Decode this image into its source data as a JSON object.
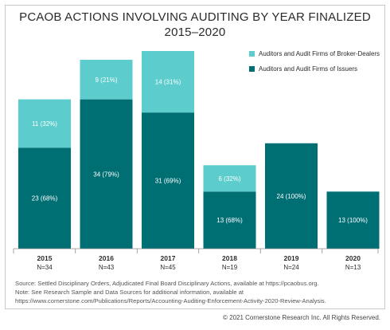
{
  "chart_data": {
    "type": "bar",
    "title": "PCAOB ACTIONS INVOLVING AUDITING BY YEAR FINALIZED",
    "subtitle": "2015–2020",
    "categories": [
      "2015",
      "2016",
      "2017",
      "2018",
      "2019",
      "2020"
    ],
    "n_labels": [
      "N=34",
      "N=43",
      "N=45",
      "N=19",
      "N=24",
      "N=13"
    ],
    "series": [
      {
        "name": "Auditors and Audit Firms of Issuers",
        "color": "#006f74",
        "values": [
          23,
          34,
          31,
          13,
          24,
          13
        ],
        "labels": [
          "23 (68%)",
          "34 (79%)",
          "31 (69%)",
          "13 (68%)",
          "24 (100%)",
          "13 (100%)"
        ]
      },
      {
        "name": "Auditors and Audit Firms of Broker-Dealers",
        "color": "#5ccccc",
        "values": [
          11,
          9,
          14,
          6,
          0,
          0
        ],
        "labels": [
          "11 (32%)",
          "9 (21%)",
          "14 (31%)",
          "6 (32%)",
          "",
          ""
        ]
      }
    ],
    "stacked": true,
    "ylim": [
      0,
      45
    ],
    "legend_position": "top-right",
    "grid": false
  },
  "notes": [
    "Source: Settled Disciplinary Orders, Adjudicated Final Board Disciplinary Actions, available at https://pcaobus.org.",
    "Note: See Research Sample and Data Sources for additional information, available at",
    "https://www.cornerstone.com/Publications/Reports/Accounting-Auditing-Enforcement-Activity-2020-Review-Analysis."
  ],
  "copyright": "© 2021 Cornerstone Research Inc. All Rights Reserved."
}
